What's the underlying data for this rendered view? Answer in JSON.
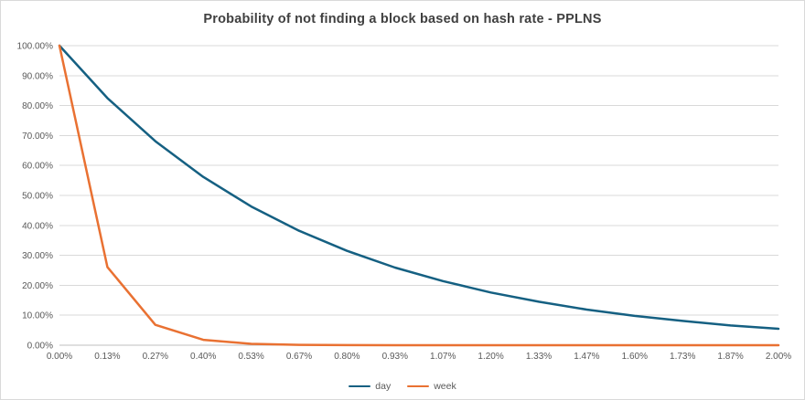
{
  "chart_data": {
    "type": "line",
    "title": "Probability of not finding a block based on hash rate - PPLNS",
    "xlabel": "",
    "ylabel": "",
    "ylim": [
      0,
      100
    ],
    "y_tick_step": 10,
    "grid": "horizontal",
    "legend_position": "bottom",
    "y_tick_labels": [
      "0.00%",
      "10.00%",
      "20.00%",
      "30.00%",
      "40.00%",
      "50.00%",
      "60.00%",
      "70.00%",
      "80.00%",
      "90.00%",
      "100.00%"
    ],
    "x_tick_labels": [
      "0.00%",
      "0.13%",
      "0.27%",
      "0.40%",
      "0.53%",
      "0.67%",
      "0.80%",
      "0.93%",
      "1.07%",
      "1.20%",
      "1.33%",
      "1.47%",
      "1.60%",
      "1.73%",
      "1.87%",
      "2.00%"
    ],
    "series": [
      {
        "name": "day",
        "color": "#156082",
        "values": [
          100,
          82.5,
          68.1,
          56.2,
          46.3,
          38.2,
          31.5,
          25.9,
          21.4,
          17.6,
          14.5,
          11.9,
          9.8,
          8.1,
          6.6,
          5.5
        ]
      },
      {
        "name": "week",
        "color": "#E97132",
        "values": [
          100,
          26.1,
          6.8,
          1.8,
          0.46,
          0.12,
          0.03,
          0.01,
          0,
          0,
          0,
          0,
          0,
          0,
          0,
          0
        ]
      }
    ],
    "colors": {
      "gridline": "#d9d9d9",
      "axis_line": "#bfbfbf",
      "tick_label": "#595959",
      "title": "#404040"
    }
  }
}
